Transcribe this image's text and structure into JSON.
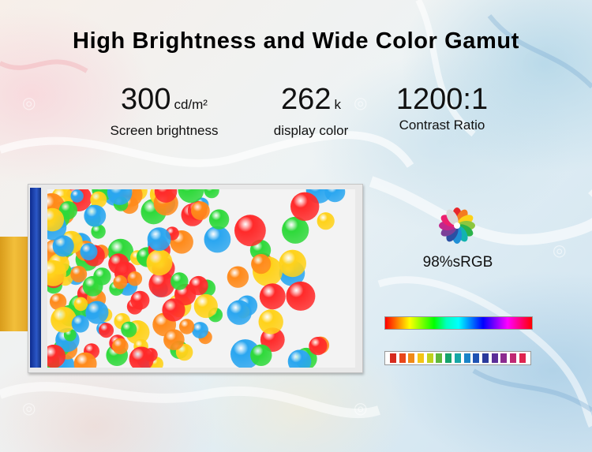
{
  "title": "High Brightness and Wide Color Gamut",
  "specs": [
    {
      "value": "300",
      "unit": "cd/m²",
      "caption": "Screen brightness"
    },
    {
      "value": "262",
      "unit": "k",
      "caption": "display color"
    },
    {
      "value": "1200:1",
      "unit": "",
      "caption": "Contrast Ratio"
    }
  ],
  "gamut": {
    "label": "98%sRGB",
    "icon": "color-wheel-icon"
  },
  "swatch_colors": [
    "#d62b1e",
    "#e8461a",
    "#f08a17",
    "#f4c514",
    "#bfd21e",
    "#5fb83a",
    "#14a36b",
    "#16a7a6",
    "#1a84c8",
    "#1f53b3",
    "#2b3a9c",
    "#5b2e98",
    "#8c2b8f",
    "#c02873",
    "#e0254f"
  ],
  "palette": {
    "red": "#ff2a2a",
    "green": "#2ed93a",
    "blue": "#2aa6f0",
    "yellow": "#ffd21a",
    "orange": "#ff8a1a"
  }
}
